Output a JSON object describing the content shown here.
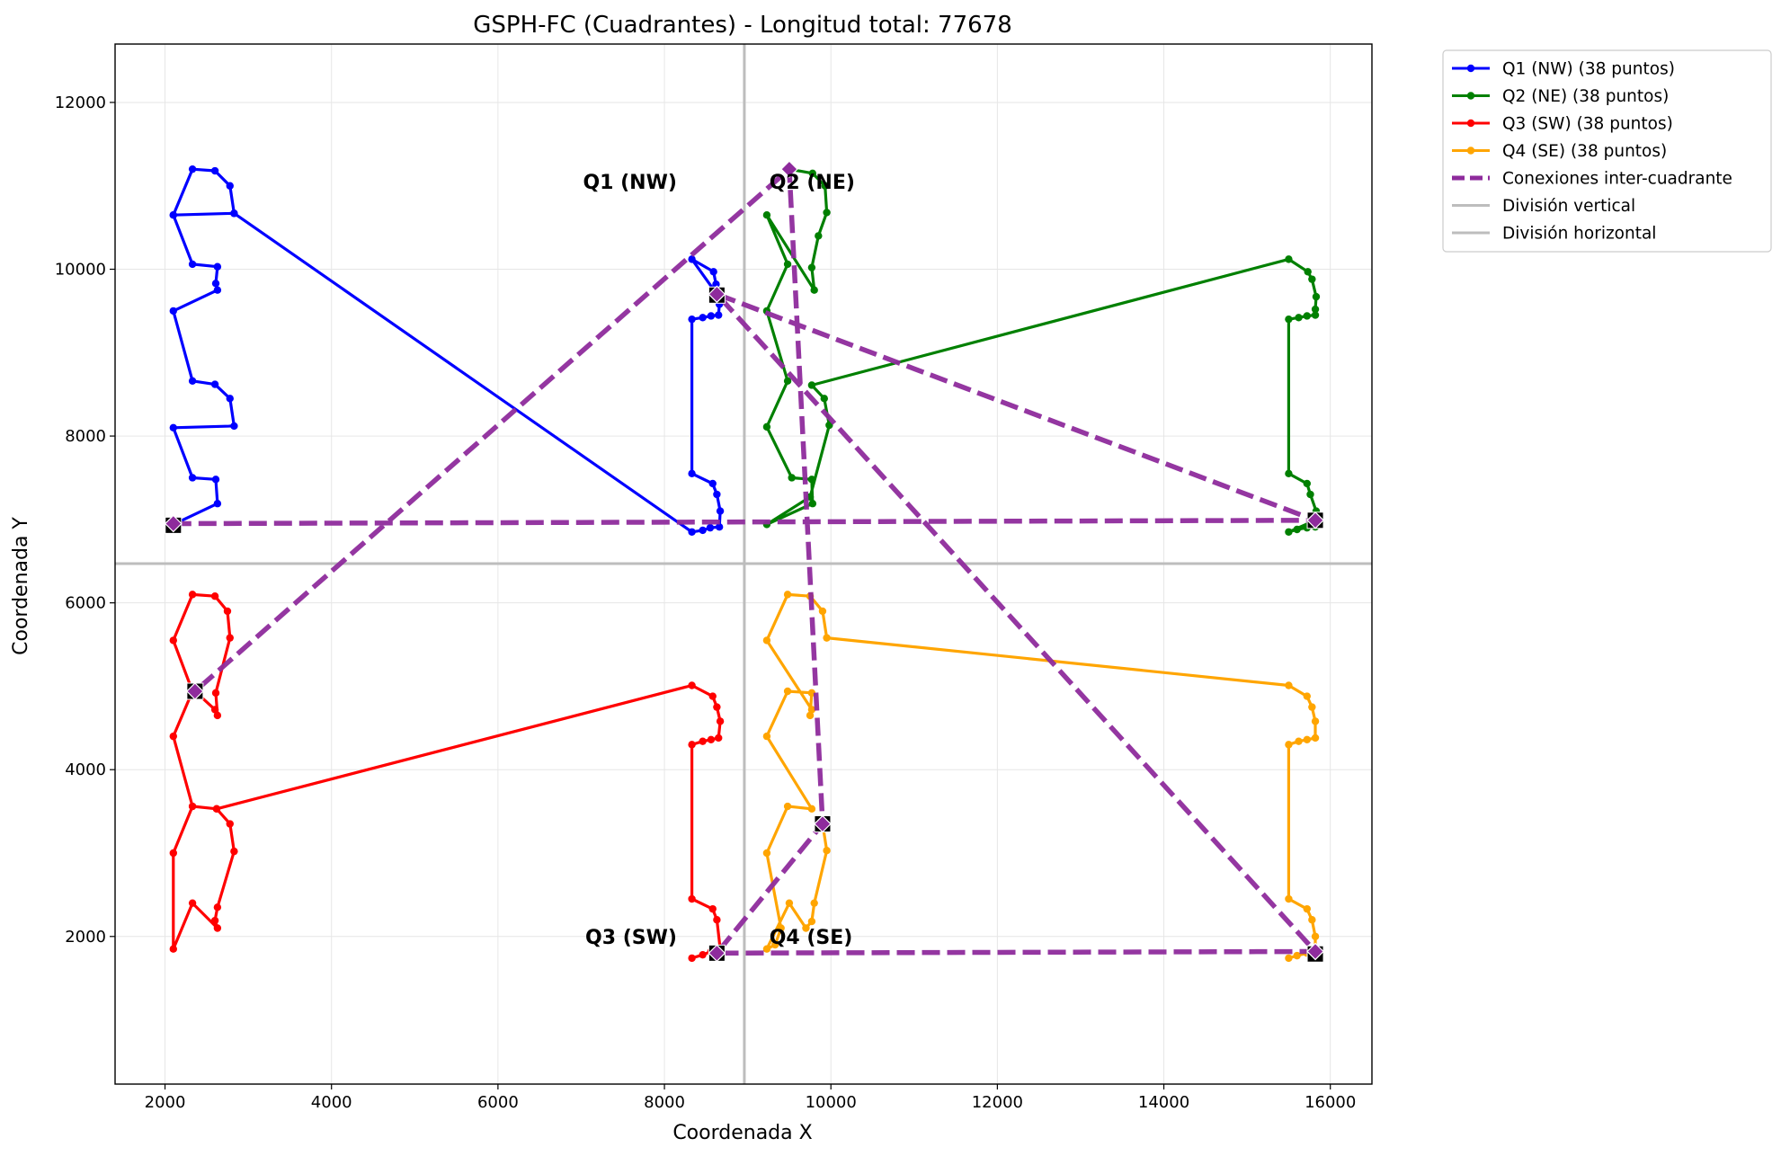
{
  "chart_data": {
    "type": "line",
    "title": "GSPH-FC (Cuadrantes) - Longitud total: 77678",
    "xlabel": "Coordenada X",
    "ylabel": "Coordenada Y",
    "xlim": [
      1400,
      16500
    ],
    "ylim": [
      230,
      12700
    ],
    "xticks": [
      2000,
      4000,
      6000,
      8000,
      10000,
      12000,
      14000,
      16000
    ],
    "yticks": [
      2000,
      4000,
      6000,
      8000,
      10000,
      12000
    ],
    "grid": true,
    "legend_position": "outside-top-right",
    "colors": {
      "q1": "#0000ff",
      "q2": "#008000",
      "q3": "#ff0000",
      "q4": "#ffa500",
      "connections": "#8e2b9c",
      "dividers": "#bdbdbd"
    },
    "dividers": {
      "vertical_x": 8960,
      "horizontal_y": 6470,
      "vertical_label": "División vertical",
      "horizontal_label": "División horizontal"
    },
    "series": [
      {
        "name": "Q1 (NW) (38 puntos)",
        "color": "#0000ff",
        "points": [
          [
            2100,
            6940
          ],
          [
            2630,
            7190
          ],
          [
            2610,
            7480
          ],
          [
            2330,
            7500
          ],
          [
            2100,
            8100
          ],
          [
            2830,
            8120
          ],
          [
            2780,
            8450
          ],
          [
            2600,
            8620
          ],
          [
            2330,
            8660
          ],
          [
            2100,
            9500
          ],
          [
            2630,
            9750
          ],
          [
            2610,
            9830
          ],
          [
            2630,
            10030
          ],
          [
            2330,
            10060
          ],
          [
            2100,
            10650
          ],
          [
            2830,
            10670
          ],
          [
            2780,
            11000
          ],
          [
            2600,
            11180
          ],
          [
            2330,
            11200
          ],
          [
            2100,
            10650
          ],
          [
            2830,
            10670
          ],
          [
            8330,
            6850
          ],
          [
            8460,
            6870
          ],
          [
            8550,
            6900
          ],
          [
            8660,
            6910
          ],
          [
            8670,
            7100
          ],
          [
            8630,
            7300
          ],
          [
            8580,
            7430
          ],
          [
            8330,
            7550
          ],
          [
            8330,
            9400
          ],
          [
            8460,
            9420
          ],
          [
            8560,
            9440
          ],
          [
            8650,
            9450
          ],
          [
            8660,
            9580
          ],
          [
            8620,
            9820
          ],
          [
            8590,
            9970
          ],
          [
            8330,
            10120
          ],
          [
            8630,
            9700
          ]
        ]
      },
      {
        "name": "Q2 (NE) (38 puntos)",
        "color": "#008000",
        "points": [
          [
            9500,
            11200
          ],
          [
            9780,
            11150
          ],
          [
            9930,
            11000
          ],
          [
            9950,
            10680
          ],
          [
            9850,
            10400
          ],
          [
            9770,
            10020
          ],
          [
            9800,
            9750
          ],
          [
            9230,
            10650
          ],
          [
            9480,
            10060
          ],
          [
            9230,
            9500
          ],
          [
            9480,
            8660
          ],
          [
            9230,
            8110
          ],
          [
            9530,
            7500
          ],
          [
            9770,
            7480
          ],
          [
            9780,
            7190
          ],
          [
            9230,
            6940
          ],
          [
            9750,
            7270
          ],
          [
            9980,
            8130
          ],
          [
            9920,
            8450
          ],
          [
            9770,
            8610
          ],
          [
            15500,
            10120
          ],
          [
            15730,
            9970
          ],
          [
            15780,
            9880
          ],
          [
            15830,
            9670
          ],
          [
            15820,
            9520
          ],
          [
            15820,
            9450
          ],
          [
            15720,
            9440
          ],
          [
            15620,
            9420
          ],
          [
            15500,
            9400
          ],
          [
            15500,
            7550
          ],
          [
            15720,
            7430
          ],
          [
            15760,
            7300
          ],
          [
            15830,
            7100
          ],
          [
            15820,
            6910
          ],
          [
            15720,
            6900
          ],
          [
            15600,
            6880
          ],
          [
            15500,
            6850
          ],
          [
            15820,
            6990
          ]
        ]
      },
      {
        "name": "Q3 (SW) (38 puntos)",
        "color": "#ff0000",
        "points": [
          [
            2360,
            4940
          ],
          [
            2600,
            4720
          ],
          [
            2630,
            4650
          ],
          [
            2610,
            4920
          ],
          [
            2780,
            5580
          ],
          [
            2750,
            5900
          ],
          [
            2600,
            6080
          ],
          [
            2330,
            6100
          ],
          [
            2100,
            5550
          ],
          [
            2330,
            4940
          ],
          [
            2100,
            4400
          ],
          [
            2330,
            3560
          ],
          [
            2620,
            3530
          ],
          [
            2780,
            3350
          ],
          [
            2830,
            3020
          ],
          [
            2630,
            2350
          ],
          [
            2600,
            2190
          ],
          [
            2630,
            2100
          ],
          [
            2330,
            2400
          ],
          [
            2100,
            1850
          ],
          [
            2100,
            3000
          ],
          [
            2330,
            3560
          ],
          [
            2620,
            3530
          ],
          [
            8330,
            5010
          ],
          [
            8580,
            4880
          ],
          [
            8630,
            4750
          ],
          [
            8670,
            4580
          ],
          [
            8650,
            4380
          ],
          [
            8560,
            4360
          ],
          [
            8460,
            4340
          ],
          [
            8330,
            4300
          ],
          [
            8330,
            2450
          ],
          [
            8580,
            2330
          ],
          [
            8630,
            2200
          ],
          [
            8670,
            1850
          ],
          [
            8560,
            1820
          ],
          [
            8460,
            1780
          ],
          [
            8330,
            1740
          ]
        ]
      },
      {
        "name": "Q4 (SE) (38 puntos)",
        "color": "#ffa500",
        "points": [
          [
            9900,
            3350
          ],
          [
            9950,
            3030
          ],
          [
            9800,
            2400
          ],
          [
            9770,
            2180
          ],
          [
            9700,
            2100
          ],
          [
            9500,
            2400
          ],
          [
            9230,
            1850
          ],
          [
            9330,
            1900
          ],
          [
            9400,
            2100
          ],
          [
            9230,
            3000
          ],
          [
            9480,
            3560
          ],
          [
            9770,
            3530
          ],
          [
            9230,
            4400
          ],
          [
            9480,
            4940
          ],
          [
            9770,
            4920
          ],
          [
            9750,
            4650
          ],
          [
            9770,
            4720
          ],
          [
            9230,
            5550
          ],
          [
            9480,
            6100
          ],
          [
            9750,
            6080
          ],
          [
            9900,
            5900
          ],
          [
            9950,
            5580
          ],
          [
            15500,
            5010
          ],
          [
            15720,
            4880
          ],
          [
            15780,
            4750
          ],
          [
            15820,
            4580
          ],
          [
            15820,
            4380
          ],
          [
            15720,
            4360
          ],
          [
            15620,
            4340
          ],
          [
            15500,
            4300
          ],
          [
            15500,
            2450
          ],
          [
            15720,
            2330
          ],
          [
            15780,
            2200
          ],
          [
            15820,
            2000
          ],
          [
            15820,
            1850
          ],
          [
            15720,
            1800
          ],
          [
            15600,
            1770
          ],
          [
            15500,
            1740
          ]
        ]
      },
      {
        "name": "Conexiones inter-cuadrante",
        "color": "#8e2b9c",
        "dashed": true,
        "points": [
          [
            2100,
            6950
          ],
          [
            15820,
            6990
          ],
          [
            8630,
            9700
          ],
          [
            15820,
            1820
          ],
          [
            8630,
            1800
          ],
          [
            9900,
            3350
          ],
          [
            9500,
            11200
          ],
          [
            2360,
            4940
          ]
        ]
      }
    ],
    "markers": {
      "square_points": [
        [
          2100,
          6930
        ],
        [
          8630,
          9690
        ],
        [
          15820,
          6990
        ],
        [
          2360,
          4940
        ],
        [
          9900,
          3350
        ],
        [
          8630,
          1800
        ],
        [
          15820,
          1790
        ]
      ],
      "diamond_points": [
        [
          2100,
          6950
        ],
        [
          9500,
          11200
        ],
        [
          8630,
          9700
        ],
        [
          15820,
          6990
        ],
        [
          2360,
          4940
        ],
        [
          9900,
          3350
        ],
        [
          8630,
          1800
        ],
        [
          15820,
          1820
        ]
      ]
    },
    "annotations": [
      {
        "text": "Q1 (NW)",
        "x": 8150,
        "y": 11050,
        "anchor": "end"
      },
      {
        "text": "Q2 (NE)",
        "x": 9260,
        "y": 11050,
        "anchor": "start"
      },
      {
        "text": "Q3 (SW)",
        "x": 8150,
        "y": 2000,
        "anchor": "end"
      },
      {
        "text": "Q4 (SE)",
        "x": 9260,
        "y": 2000,
        "anchor": "start"
      }
    ]
  }
}
